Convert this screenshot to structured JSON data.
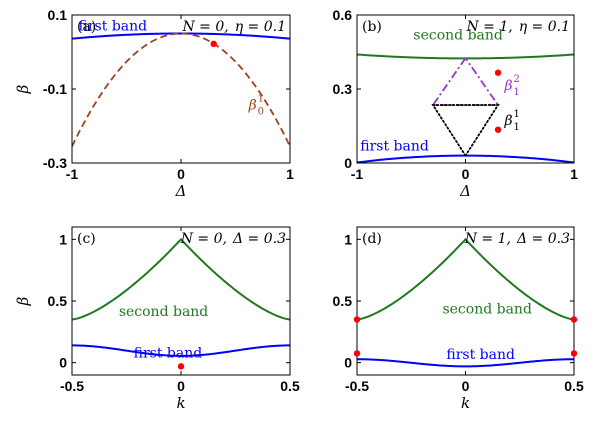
{
  "chart_data": [
    {
      "type": "line",
      "panel_label": "(a)",
      "title_parts": {
        "n": "N = 0,",
        "p": "η = 0.1"
      },
      "xlabel": "Δ",
      "ylabel": "β",
      "xlim": [
        -1,
        1
      ],
      "ylim": [
        -0.3,
        0.1
      ],
      "xticks": [
        "-1",
        "0",
        "1"
      ],
      "yticks": [
        "-0.3",
        "-0.1",
        "0.1"
      ],
      "series": [
        {
          "name": "first band",
          "color": "#0000ff",
          "style": "solid",
          "shape": "arch",
          "args": [
            0.05,
            0.014
          ]
        },
        {
          "name": "β01",
          "color": "#a0421c",
          "style": "dashed",
          "shape": "arch",
          "args": [
            0.05,
            0.305
          ]
        }
      ],
      "labels": [
        {
          "text": "first band",
          "color": "#0000ff",
          "x": -0.94,
          "y": 0.058,
          "anchor": "start"
        },
        {
          "base": "β",
          "sup": "1",
          "sub": "0",
          "color": "#a0421c",
          "x": 0.62,
          "y": -0.155,
          "anchor": "start"
        }
      ],
      "markers": [
        {
          "x": 0.3,
          "y": 0.022,
          "color": "#ff0000"
        }
      ]
    },
    {
      "type": "line",
      "panel_label": "(b)",
      "title_parts": {
        "n": "N = 1,",
        "p": "η = 0.1"
      },
      "xlabel": "Δ",
      "ylabel": "",
      "xlim": [
        -1,
        1
      ],
      "ylim": [
        0,
        0.6
      ],
      "xticks": [
        "-1",
        "0",
        "1"
      ],
      "yticks": [
        "0",
        "0.3",
        "0.6"
      ],
      "series": [
        {
          "name": "first band",
          "color": "#0000ff",
          "style": "solid",
          "shape": "arch",
          "args": [
            0.03,
            0.028
          ]
        },
        {
          "name": "second band",
          "color": "#1f7a1f",
          "style": "solid",
          "shape": "bowl",
          "args": [
            0.424,
            0.016
          ]
        },
        {
          "name": "β12",
          "color": "#9932cc",
          "style": "dashdot",
          "shape": "loop_top",
          "args": [
            0.3,
            0.425,
            0.235
          ]
        },
        {
          "name": "β11",
          "color": "#000000",
          "style": "dotted",
          "shape": "loop_bottom",
          "args": [
            0.3,
            0.03,
            0.235
          ]
        }
      ],
      "labels": [
        {
          "text": "second band",
          "color": "#1f7a1f",
          "x": -0.48,
          "y": 0.5,
          "anchor": "start"
        },
        {
          "text": "first band",
          "color": "#0000ff",
          "x": -0.97,
          "y": 0.05,
          "anchor": "start"
        },
        {
          "base": "β",
          "sup": "2",
          "sub": "1",
          "color": "#9932cc",
          "x": 0.36,
          "y": 0.295,
          "anchor": "start"
        },
        {
          "base": "β",
          "sup": "1",
          "sub": "1",
          "color": "#000000",
          "x": 0.36,
          "y": 0.155,
          "anchor": "start"
        }
      ],
      "markers": [
        {
          "x": 0.3,
          "y": 0.366,
          "color": "#ff0000"
        },
        {
          "x": 0.3,
          "y": 0.135,
          "color": "#ff0000"
        }
      ]
    },
    {
      "type": "line",
      "panel_label": "(c)",
      "title_parts": {
        "n": "N = 0,",
        "p": "Δ = 0.3"
      },
      "xlabel": "k",
      "ylabel": "β",
      "xlim": [
        -0.5,
        0.5
      ],
      "ylim": [
        -0.1,
        1.1
      ],
      "xticks": [
        "-0.5",
        "0",
        "0.5"
      ],
      "yticks": [
        "0",
        "0.5",
        "1"
      ],
      "series": [
        {
          "name": "second band",
          "color": "#1f7a1f",
          "style": "solid",
          "shape": "cusp",
          "args": [
            0.35,
            1.0
          ]
        },
        {
          "name": "first band",
          "color": "#0000ff",
          "style": "solid",
          "shape": "cos",
          "args": [
            0.055,
            0.085
          ]
        }
      ],
      "labels": [
        {
          "text": "second band",
          "color": "#1f7a1f",
          "x": -0.08,
          "y": 0.38,
          "anchor": "middle"
        },
        {
          "text": "first band",
          "color": "#0000ff",
          "x": -0.06,
          "y": 0.04,
          "anchor": "middle"
        }
      ],
      "markers": [
        {
          "x": 0.0,
          "y": -0.03,
          "color": "#ff0000"
        }
      ]
    },
    {
      "type": "line",
      "panel_label": "(d)",
      "title_parts": {
        "n": "N = 1,",
        "p": "Δ = 0.3"
      },
      "xlabel": "k",
      "ylabel": "",
      "xlim": [
        -0.5,
        0.5
      ],
      "ylim": [
        -0.1,
        1.1
      ],
      "xticks": [
        "-0.5",
        "0",
        "0.5"
      ],
      "yticks": [
        "0",
        "0.5",
        "1"
      ],
      "series": [
        {
          "name": "second band",
          "color": "#1f7a1f",
          "style": "solid",
          "shape": "cusp",
          "args": [
            0.35,
            1.0
          ]
        },
        {
          "name": "first band",
          "color": "#0000ff",
          "style": "solid",
          "shape": "cos",
          "args": [
            -0.03,
            0.058
          ]
        }
      ],
      "labels": [
        {
          "text": "second band",
          "color": "#1f7a1f",
          "x": 0.1,
          "y": 0.4,
          "anchor": "middle"
        },
        {
          "text": "first band",
          "color": "#0000ff",
          "x": 0.07,
          "y": 0.03,
          "anchor": "middle"
        }
      ],
      "markers": [
        {
          "x": -0.5,
          "y": 0.35,
          "color": "#ff0000"
        },
        {
          "x": 0.5,
          "y": 0.35,
          "color": "#ff0000"
        },
        {
          "x": -0.5,
          "y": 0.075,
          "color": "#ff0000"
        },
        {
          "x": 0.5,
          "y": 0.075,
          "color": "#ff0000"
        }
      ]
    }
  ]
}
